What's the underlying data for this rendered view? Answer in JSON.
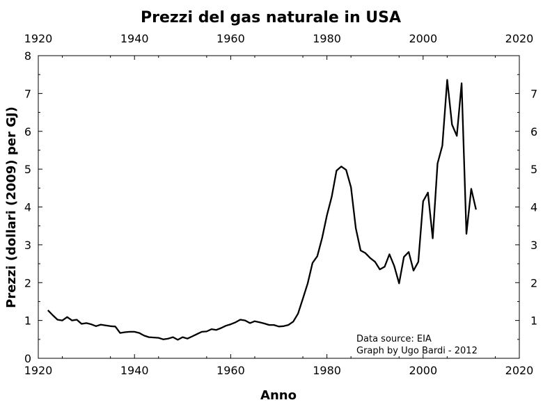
{
  "chart_data": {
    "type": "line",
    "title": "Prezzi del gas naturale in USA",
    "xlabel": "Anno",
    "ylabel": "Prezzi (dollari (2009) per GJ)",
    "xlim": [
      1920,
      2020
    ],
    "ylim": [
      0,
      8
    ],
    "x_ticks": [
      1920,
      1940,
      1960,
      1980,
      2000,
      2020
    ],
    "y_ticks": [
      0,
      1,
      2,
      3,
      4,
      5,
      6,
      7,
      8
    ],
    "y_ticks_right": [
      1,
      2,
      3,
      4,
      5,
      6,
      7
    ],
    "grid": false,
    "line_color": "#000000",
    "annotations": [
      "Data source: EIA",
      "Graph by Ugo Bardi - 2012"
    ],
    "series": [
      {
        "x": [
          1922,
          1923,
          1924,
          1925,
          1926,
          1927,
          1928,
          1929,
          1930,
          1931,
          1932,
          1933,
          1934,
          1935,
          1936,
          1937,
          1938,
          1939,
          1940,
          1941,
          1942,
          1943,
          1944,
          1945,
          1946,
          1947,
          1948,
          1949,
          1950,
          1951,
          1952,
          1953,
          1954,
          1955,
          1956,
          1957,
          1958,
          1959,
          1960,
          1961,
          1962,
          1963,
          1964,
          1965,
          1966,
          1967,
          1968,
          1969,
          1970,
          1971,
          1972,
          1973,
          1974,
          1975,
          1976,
          1977,
          1978,
          1979,
          1980,
          1981,
          1982,
          1983,
          1984,
          1985,
          1986,
          1987,
          1988,
          1989,
          1990,
          1991,
          1992,
          1993,
          1994,
          1995,
          1996,
          1997,
          1998,
          1999,
          2000,
          2001,
          2002,
          2003,
          2004,
          2005,
          2006,
          2007,
          2008,
          2009,
          2010,
          2011
        ],
        "y": [
          1.27,
          1.14,
          1.02,
          1.0,
          1.09,
          1.0,
          1.02,
          0.91,
          0.93,
          0.9,
          0.85,
          0.89,
          0.87,
          0.85,
          0.84,
          0.67,
          0.69,
          0.7,
          0.7,
          0.67,
          0.6,
          0.56,
          0.55,
          0.54,
          0.5,
          0.52,
          0.56,
          0.49,
          0.56,
          0.52,
          0.58,
          0.64,
          0.7,
          0.71,
          0.77,
          0.75,
          0.8,
          0.86,
          0.9,
          0.95,
          1.02,
          1.0,
          0.93,
          0.98,
          0.95,
          0.92,
          0.88,
          0.88,
          0.84,
          0.85,
          0.88,
          0.97,
          1.18,
          1.58,
          1.98,
          2.52,
          2.7,
          3.18,
          3.78,
          4.27,
          4.96,
          5.07,
          4.98,
          4.52,
          3.44,
          2.85,
          2.78,
          2.65,
          2.55,
          2.35,
          2.42,
          2.75,
          2.44,
          1.98,
          2.68,
          2.81,
          2.32,
          2.55,
          4.15,
          4.38,
          3.17,
          5.15,
          5.62,
          7.36,
          6.18,
          5.88,
          7.27,
          3.29,
          4.48,
          3.93
        ]
      }
    ]
  }
}
